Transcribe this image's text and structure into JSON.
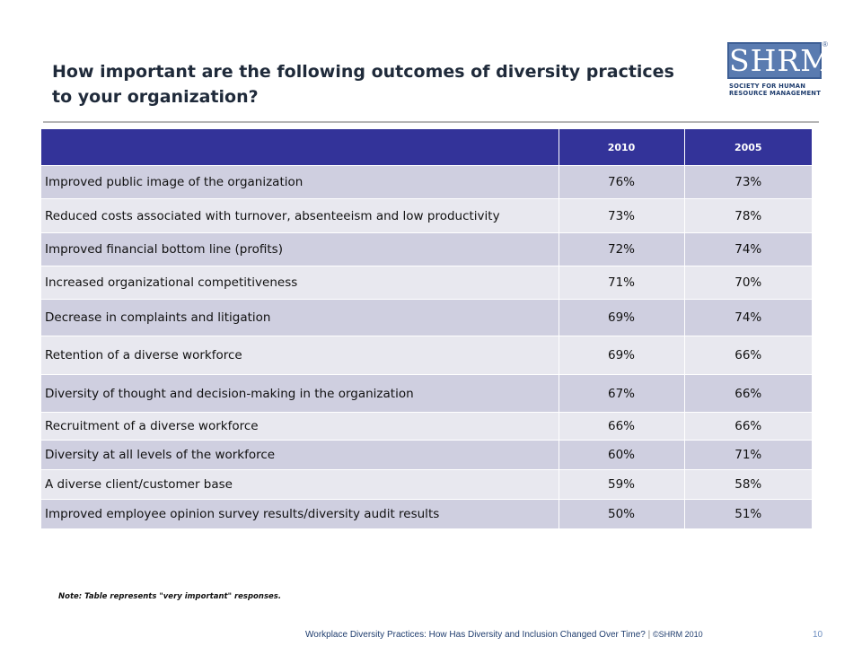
{
  "title": "How important are the following outcomes of diversity practices to your organization?",
  "logo": {
    "mark": "SHRM",
    "reg": "®",
    "line1": "SOCIETY FOR HUMAN",
    "line2": "RESOURCE MANAGEMENT"
  },
  "table": {
    "headers": [
      "",
      "2010",
      "2005"
    ],
    "rows": [
      {
        "label": "Improved public image of the organization",
        "v2010": "76%",
        "v2005": "73%"
      },
      {
        "label": "Reduced costs associated with turnover, absenteeism and low productivity",
        "v2010": "73%",
        "v2005": "78%"
      },
      {
        "label": "Improved financial bottom line (profits)",
        "v2010": "72%",
        "v2005": "74%"
      },
      {
        "label": "Increased organizational competitiveness",
        "v2010": "71%",
        "v2005": "70%"
      },
      {
        "label": "Decrease in complaints and litigation",
        "v2010": "69%",
        "v2005": "74%"
      },
      {
        "label": "Retention of a diverse workforce",
        "v2010": "69%",
        "v2005": "66%"
      },
      {
        "label": "Diversity of thought and decision-making in the organization",
        "v2010": "67%",
        "v2005": "66%"
      },
      {
        "label": "Recruitment of a diverse workforce",
        "v2010": "66%",
        "v2005": "66%"
      },
      {
        "label": "Diversity at all levels of the workforce",
        "v2010": "60%",
        "v2005": "71%"
      },
      {
        "label": "A diverse client/customer base",
        "v2010": "59%",
        "v2005": "58%"
      },
      {
        "label": "Improved employee opinion survey results/diversity audit results",
        "v2010": "50%",
        "v2005": "51%"
      }
    ]
  },
  "note": "Note: Table represents \"very important\" responses.",
  "footer": {
    "text": "Workplace Diversity Practices: How Has Diversity and Inclusion Changed Over Time?",
    "separator": "|",
    "copyright": "©SHRM 2010",
    "page": "10"
  }
}
